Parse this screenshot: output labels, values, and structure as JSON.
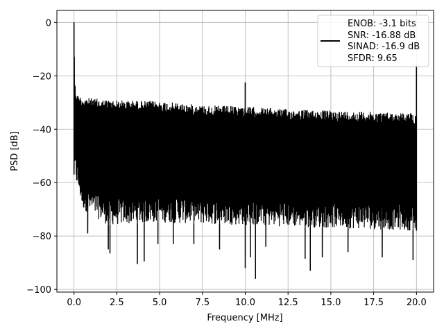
{
  "chart_data": {
    "type": "line",
    "xlabel": "Frequency [MHz]",
    "ylabel": "PSD [dB]",
    "xlim": [
      -1.0,
      21.0
    ],
    "ylim": [
      -101.0,
      4.5
    ],
    "xticks": [
      0.0,
      2.5,
      5.0,
      7.5,
      10.0,
      12.5,
      15.0,
      17.5,
      20.0
    ],
    "xtick_labels": [
      "0.0",
      "2.5",
      "5.0",
      "7.5",
      "10.0",
      "12.5",
      "15.0",
      "17.5",
      "20.0"
    ],
    "yticks": [
      0,
      -20,
      -40,
      -60,
      -80,
      -100
    ],
    "ytick_labels": [
      "0",
      "−20",
      "−40",
      "−60",
      "−80",
      "−100"
    ],
    "grid": true,
    "legend_position": "top-right",
    "series_color": "#000000",
    "legend": {
      "lines": [
        "ENOB: -3.1 bits",
        "SNR: -16.88 dB",
        "SINAD: -16.9 dB",
        "SFDR: 9.65"
      ]
    },
    "series": [
      {
        "description": "Dense noise floor PSD; upper envelope values (dB) at sampled frequencies",
        "upper_envelope": {
          "x": [
            0.0,
            0.05,
            0.1,
            0.2,
            0.5,
            2.0,
            5.0,
            7.5,
            10.0,
            12.5,
            15.0,
            17.5,
            19.95
          ],
          "y": [
            0.0,
            -22,
            -25,
            -27,
            -28,
            -29,
            -29.5,
            -31,
            -31.5,
            -32.5,
            -33,
            -33.5,
            -34
          ]
        },
        "lower_envelope": {
          "x": [
            0.0,
            0.5,
            2.0,
            5.0,
            10.0,
            15.0,
            20.0
          ],
          "y": [
            -57,
            -70,
            -76,
            -75,
            -76,
            -77,
            -78
          ]
        },
        "peaks": [
          {
            "x": 0.0,
            "y": 0.0
          },
          {
            "x": 10.0,
            "y": -22.5
          },
          {
            "x": 20.0,
            "y": -16.0
          }
        ],
        "notches": [
          {
            "x": 0.8,
            "y": -79
          },
          {
            "x": 2.0,
            "y": -85
          },
          {
            "x": 2.1,
            "y": -86.5
          },
          {
            "x": 3.7,
            "y": -90.5
          },
          {
            "x": 4.1,
            "y": -89.5
          },
          {
            "x": 4.9,
            "y": -83
          },
          {
            "x": 5.8,
            "y": -83
          },
          {
            "x": 7.0,
            "y": -83
          },
          {
            "x": 8.5,
            "y": -85
          },
          {
            "x": 10.0,
            "y": -92
          },
          {
            "x": 10.3,
            "y": -88
          },
          {
            "x": 10.6,
            "y": -96
          },
          {
            "x": 11.2,
            "y": -84
          },
          {
            "x": 13.5,
            "y": -88.5
          },
          {
            "x": 13.8,
            "y": -93
          },
          {
            "x": 14.5,
            "y": -88
          },
          {
            "x": 16.0,
            "y": -86
          },
          {
            "x": 18.0,
            "y": -88
          },
          {
            "x": 19.8,
            "y": -89
          }
        ]
      }
    ]
  }
}
